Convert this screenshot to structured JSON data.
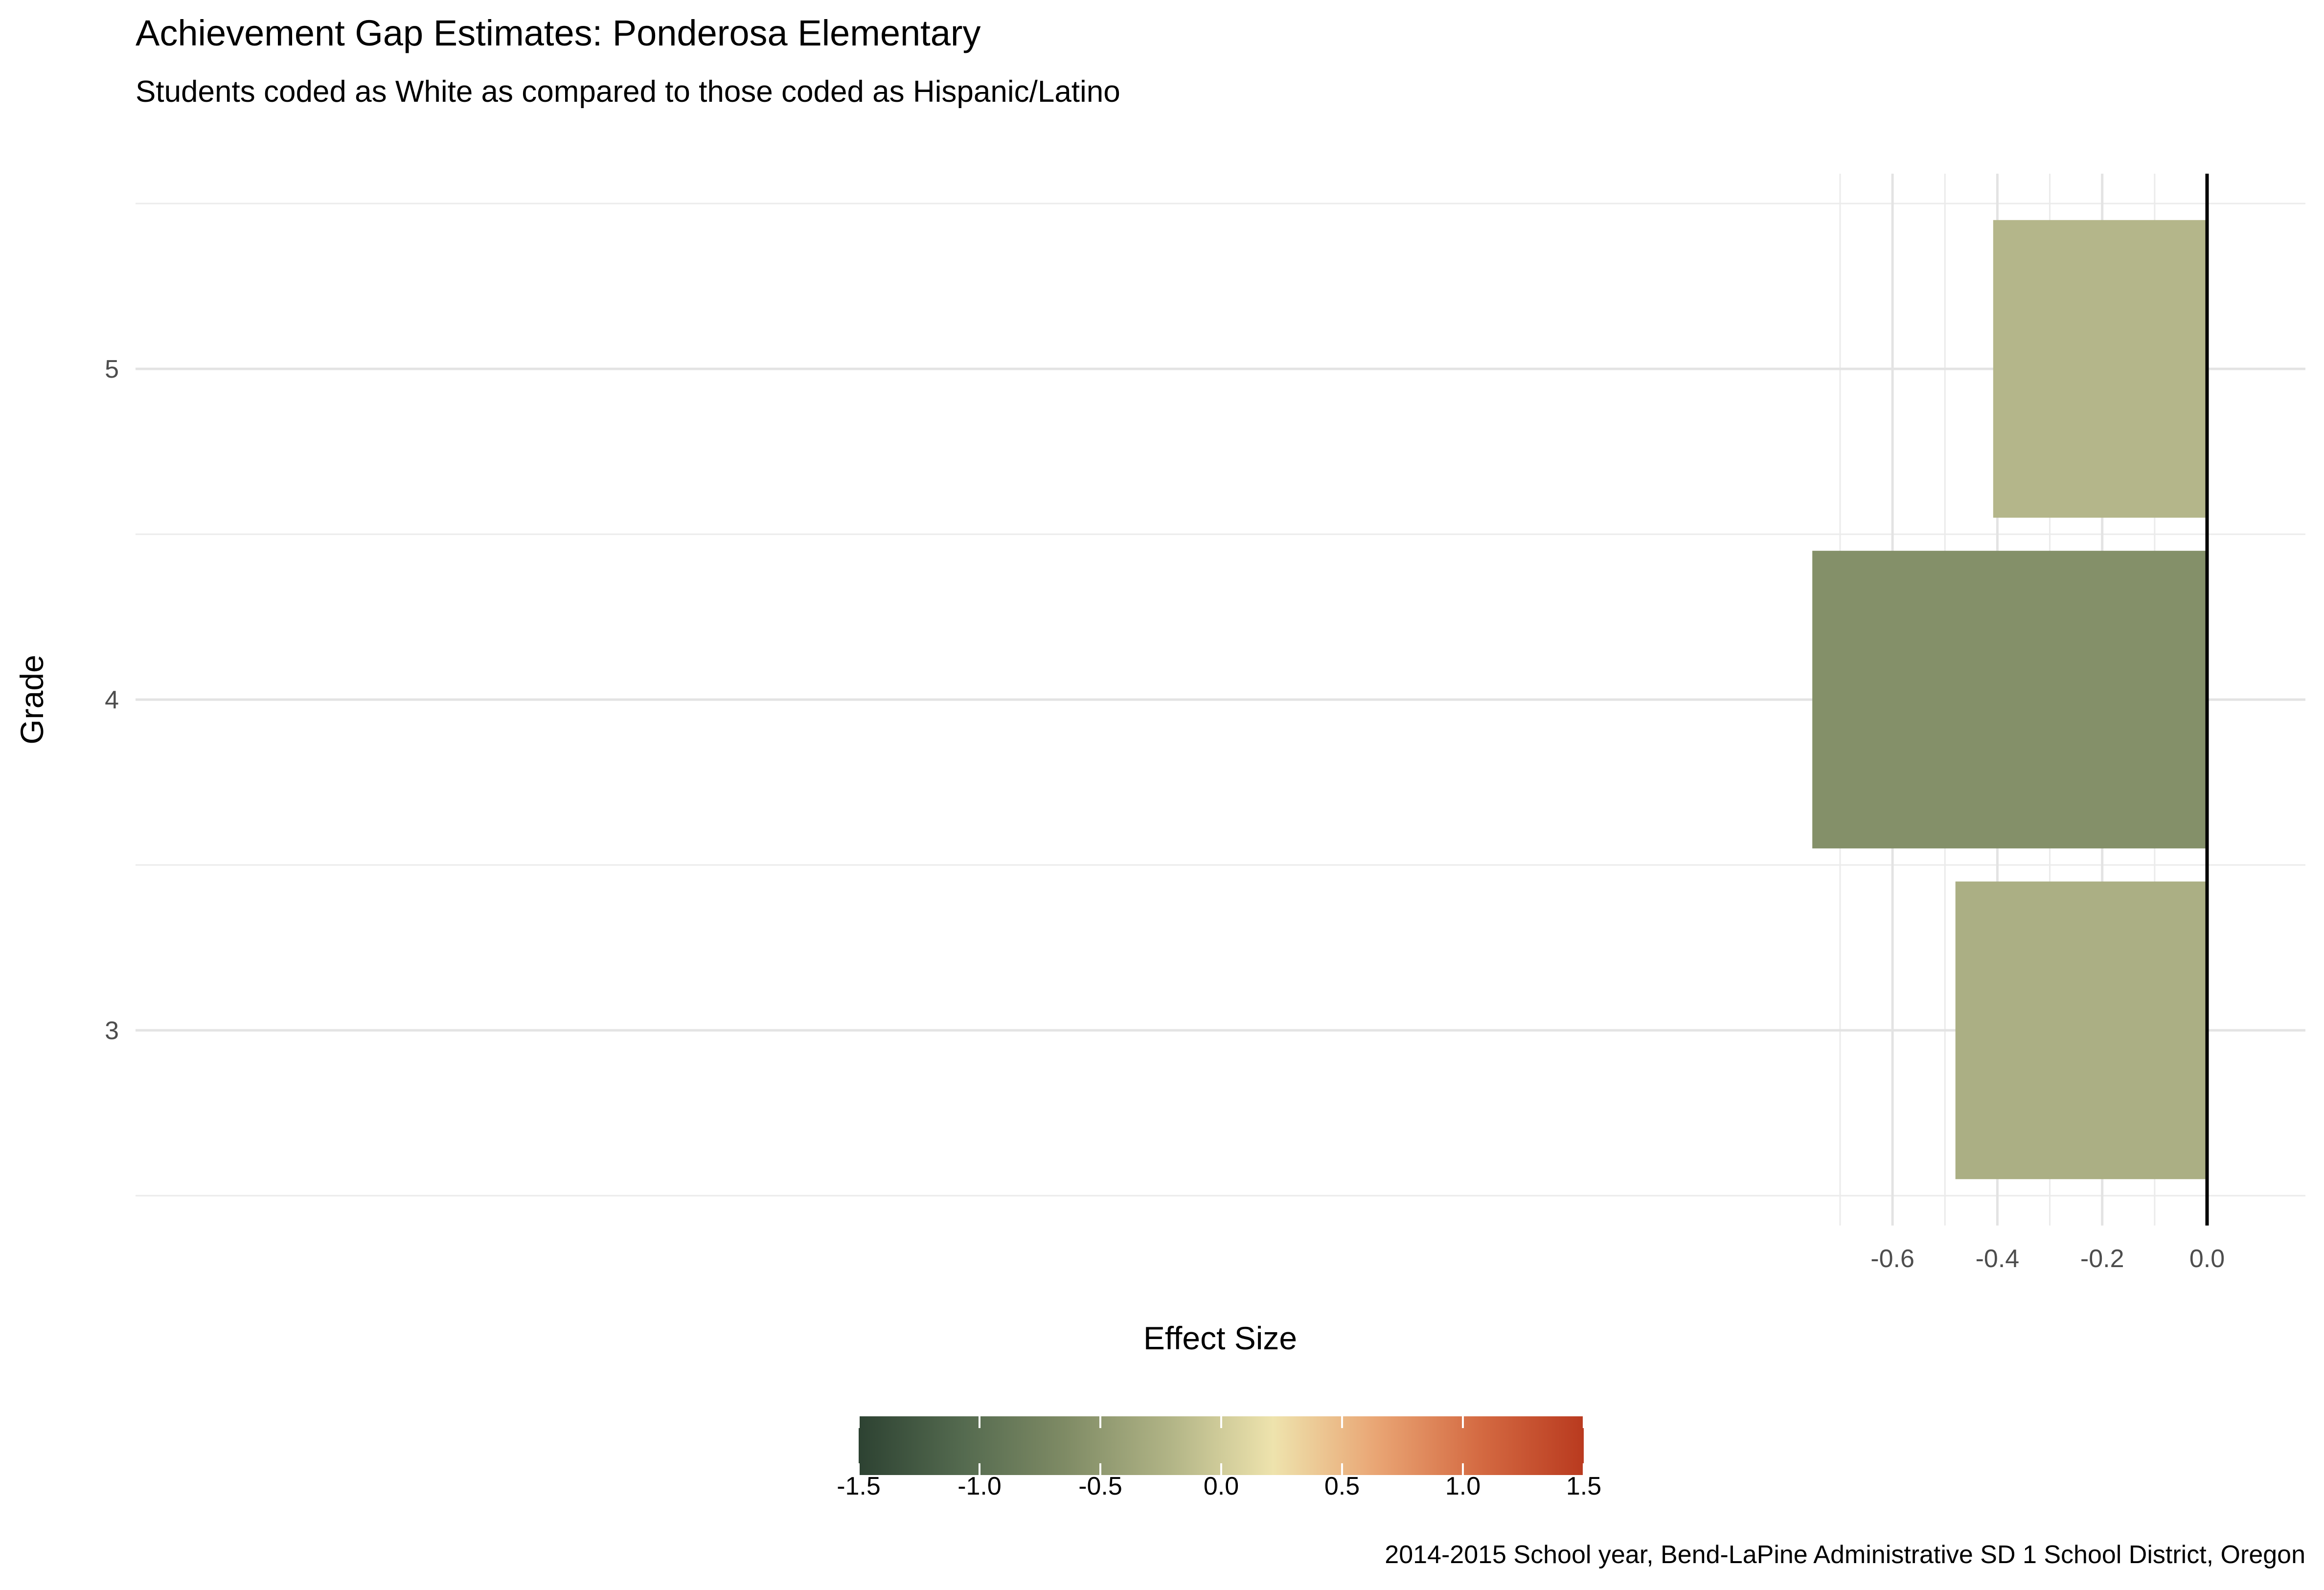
{
  "chart_data": {
    "type": "bar",
    "orientation": "horizontal",
    "title": "Achievement Gap Estimates: Ponderosa Elementary",
    "subtitle": "Students coded as White as compared to those coded as Hispanic/Latino",
    "xlabel": "Effect Size",
    "ylabel": "Grade",
    "caption": "2014-2015 School year, Bend-LaPine Administrative SD 1 School District, Oregon",
    "categories": [
      "3",
      "4",
      "5"
    ],
    "values": [
      -0.48,
      -0.753,
      -0.408
    ],
    "bar_colors": [
      "#abaf84",
      "#849069",
      "#b4b68a"
    ],
    "xlim": [
      -0.78,
      0.038
    ],
    "x_ticks": [
      -0.6,
      -0.4,
      -0.2,
      0.0
    ],
    "x_tick_labels": [
      "-0.6",
      "-0.4",
      "-0.2",
      "0.0"
    ],
    "grid": true,
    "reference_line_x": 0,
    "legend": {
      "position": "bottom",
      "type": "colorbar",
      "range": [
        -1.5,
        1.5
      ],
      "ticks": [
        -1.5,
        -1.0,
        -0.5,
        0.0,
        0.5,
        1.0,
        1.5
      ],
      "tick_labels": [
        "-1.5",
        "-1.0",
        "-0.5",
        "0.0",
        "0.5",
        "1.0",
        "1.5"
      ],
      "colors": [
        "#2d4232",
        "#546a4f",
        "#7f8b65",
        "#b1b486",
        "#eee3ad",
        "#e9a574",
        "#d46a42",
        "#b93a1f"
      ]
    }
  }
}
